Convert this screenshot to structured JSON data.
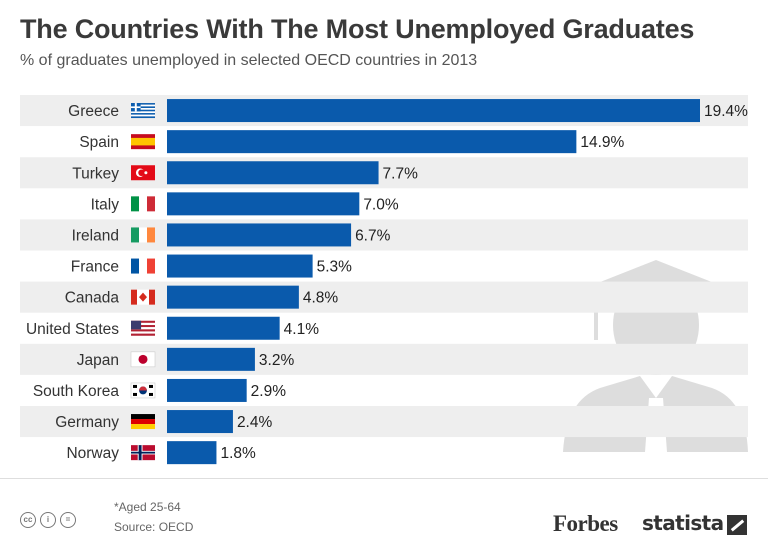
{
  "title": "The Countries With The Most Unemployed Graduates",
  "subtitle": "% of graduates unemployed in selected OECD countries in 2013",
  "chart_data": {
    "type": "bar",
    "orientation": "horizontal",
    "categories": [
      "Greece",
      "Spain",
      "Turkey",
      "Italy",
      "Ireland",
      "France",
      "Canada",
      "United States",
      "Japan",
      "South Korea",
      "Germany",
      "Norway"
    ],
    "values": [
      19.4,
      14.9,
      7.7,
      7.0,
      6.7,
      5.3,
      4.8,
      4.1,
      3.2,
      2.9,
      2.4,
      1.8
    ],
    "value_labels": [
      "19.4%",
      "14.9%",
      "7.7%",
      "7.0%",
      "6.7%",
      "5.3%",
      "4.8%",
      "4.1%",
      "3.2%",
      "2.9%",
      "2.4%",
      "1.8%"
    ],
    "flag_icons": [
      "greece-flag-icon",
      "spain-flag-icon",
      "turkey-flag-icon",
      "italy-flag-icon",
      "ireland-flag-icon",
      "france-flag-icon",
      "canada-flag-icon",
      "united-states-flag-icon",
      "japan-flag-icon",
      "south-korea-flag-icon",
      "germany-flag-icon",
      "norway-flag-icon"
    ],
    "xlim": [
      0,
      19.4
    ],
    "bar_color": "#0a5aac",
    "stripe_color": "#eeeeee",
    "grid": false,
    "title": "The Countries With The Most Unemployed Graduates",
    "xlabel": "",
    "ylabel": ""
  },
  "decoration": {
    "icon": "graduate-silhouette-icon",
    "color": "#dddddd"
  },
  "footer": {
    "license_icons": [
      "cc-icon",
      "attribution-icon",
      "no-derivatives-icon"
    ],
    "license_glyphs": [
      "cc",
      "i",
      "="
    ],
    "note": "*Aged 25-64",
    "source": "Source: OECD",
    "brand_forbes": "Forbes",
    "brand_statista": "statista"
  }
}
